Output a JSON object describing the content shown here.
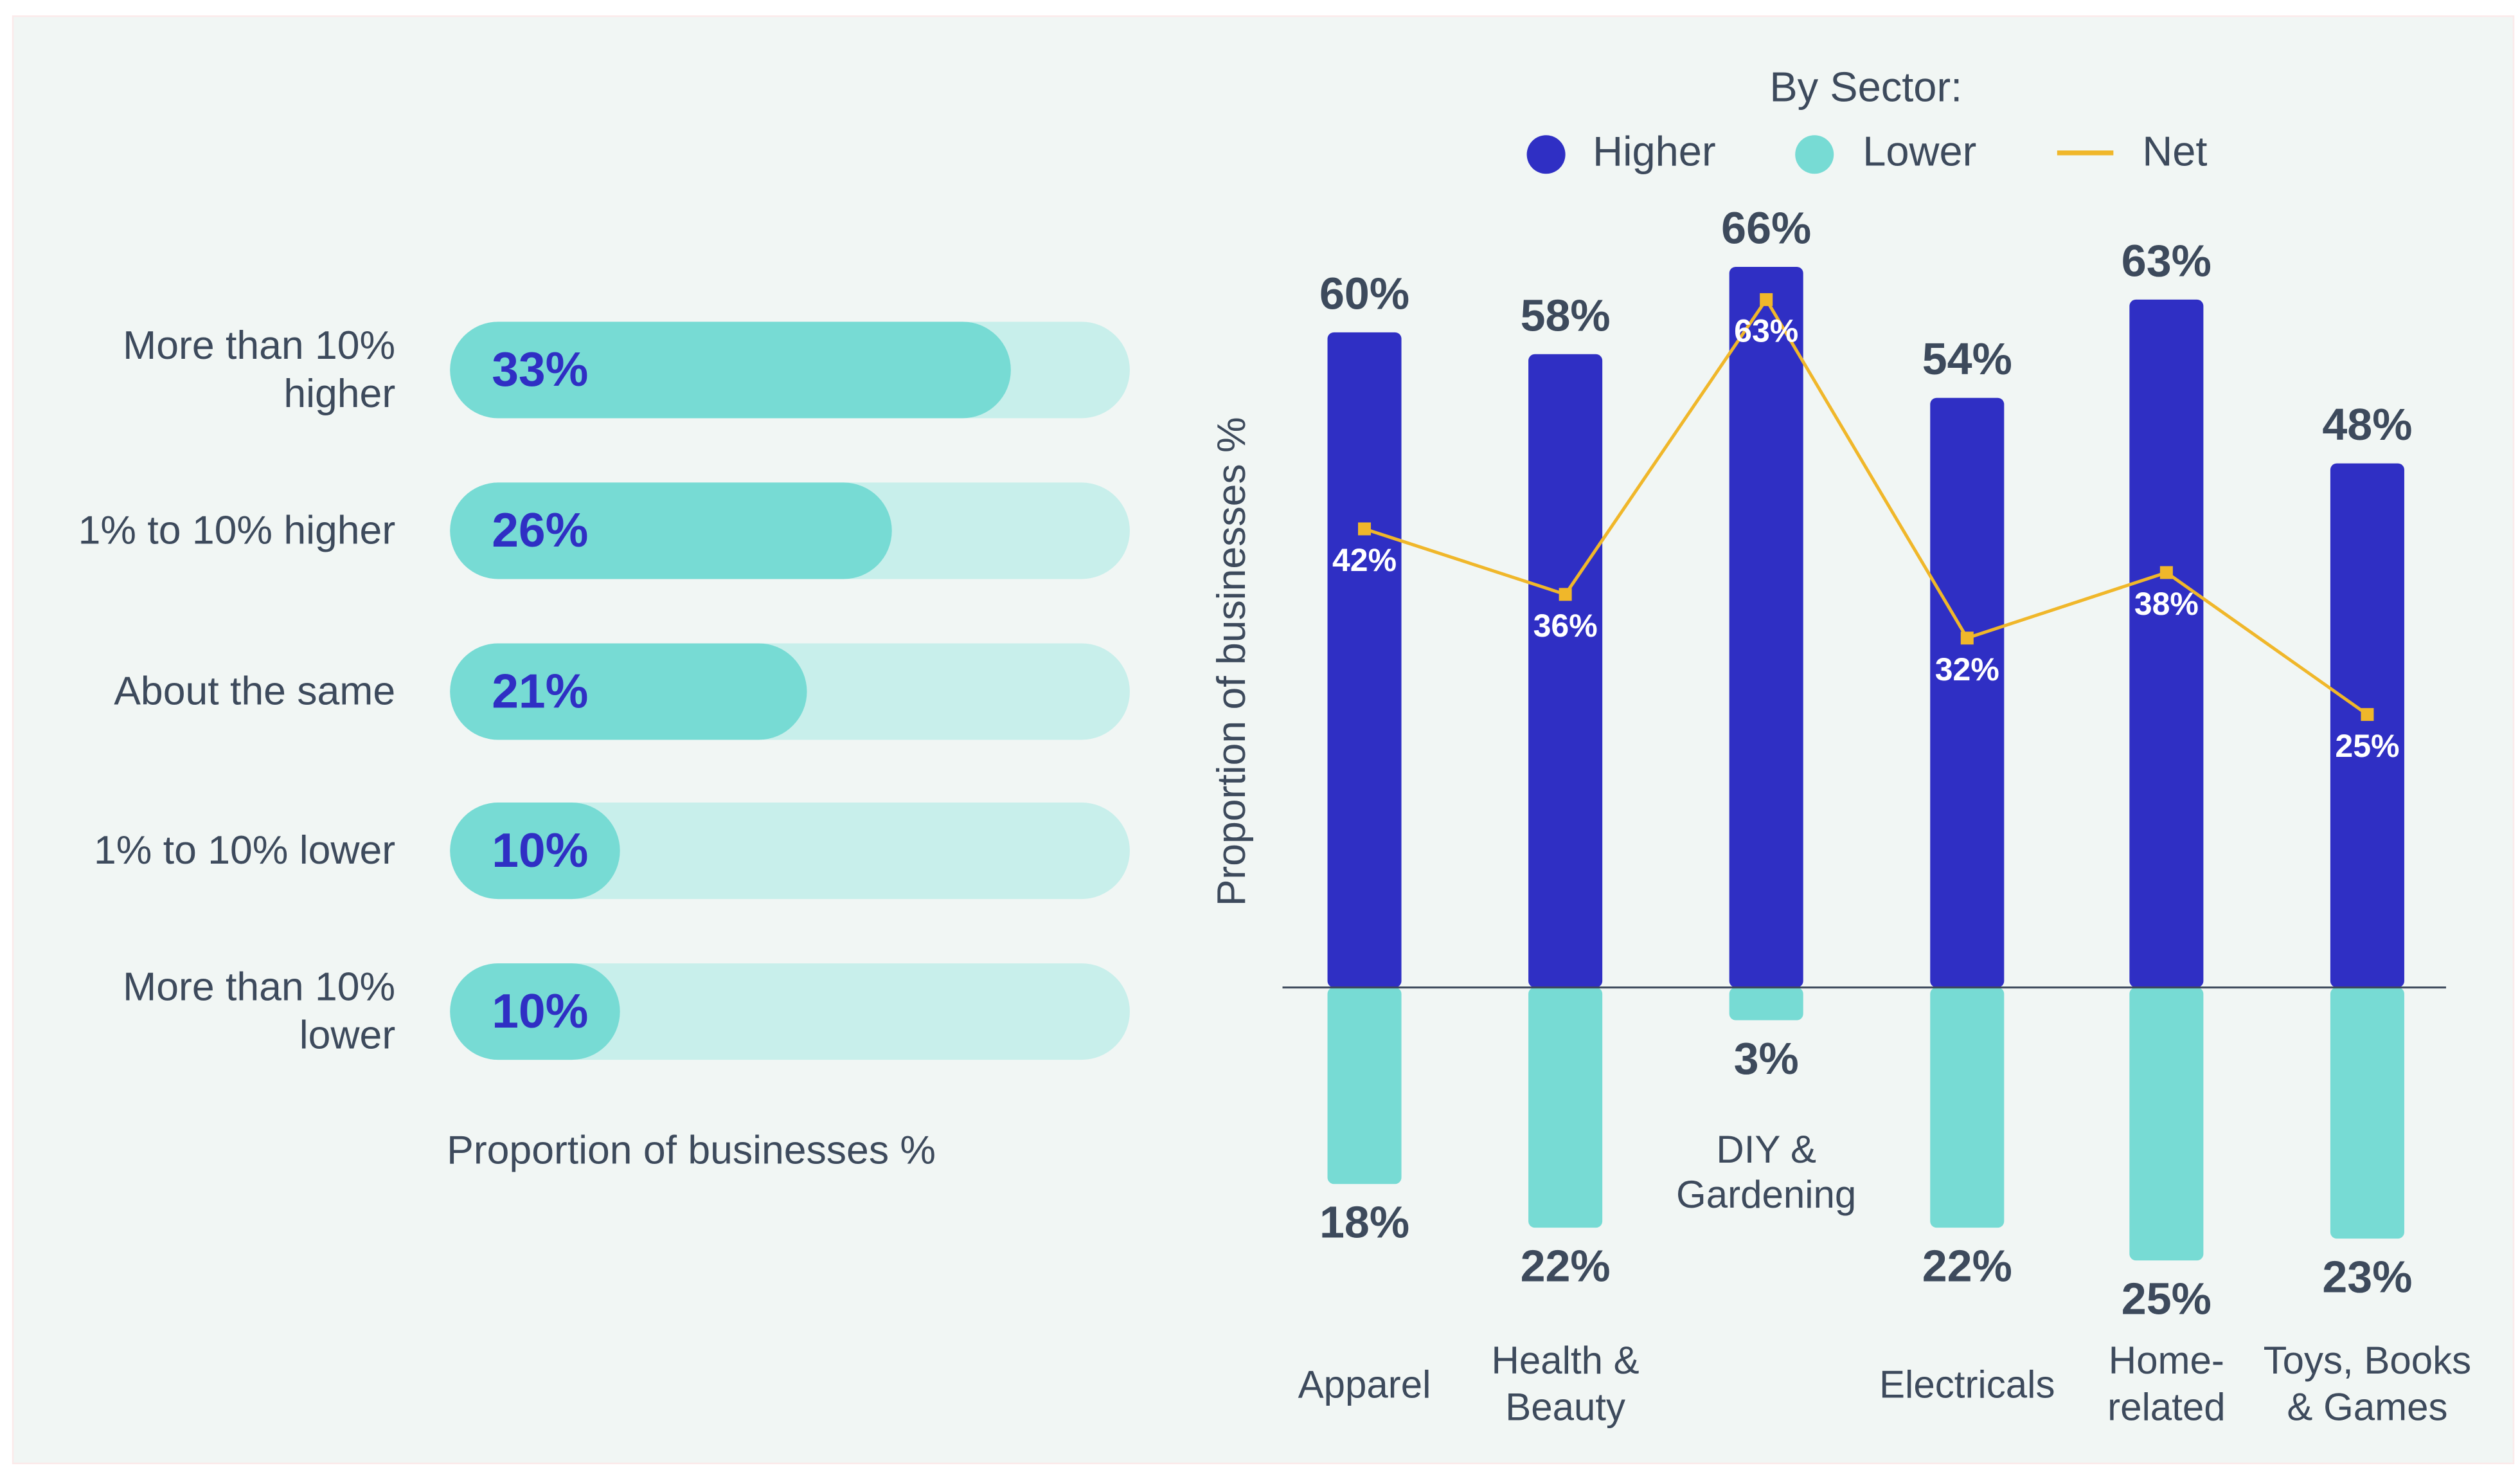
{
  "chart_data": [
    {
      "type": "hbar",
      "categories": [
        "More than 10% higher",
        "1% to 10% higher",
        "About the same",
        "1% to 10% lower",
        "More than 10% lower"
      ],
      "values": [
        33,
        26,
        21,
        10,
        10
      ],
      "value_labels": [
        "33%",
        "26%",
        "21%",
        "10%",
        "10%"
      ],
      "color": "#77dbd4",
      "xlim": [
        0,
        40
      ],
      "xlabel": "Proportion of businesses %"
    },
    {
      "type": "diverging-bar",
      "legend_title": "By Sector:",
      "categories": [
        "Apparel",
        "Health & Beauty",
        "DIY & Gardening",
        "Electricals",
        "Home-related",
        "Toys, Books & Games"
      ],
      "series": [
        {
          "name": "Higher",
          "color": "#2f2fc4",
          "values": [
            60,
            58,
            66,
            54,
            63,
            48
          ],
          "value_labels": [
            "60%",
            "58%",
            "66%",
            "54%",
            "63%",
            "48%"
          ]
        },
        {
          "name": "Lower",
          "color": "#77dbd4",
          "values": [
            -18,
            -22,
            -3,
            -22,
            -25,
            -23
          ],
          "value_labels": [
            "18%",
            "22%",
            "3%",
            "22%",
            "25%",
            "23%"
          ]
        },
        {
          "name": "Net",
          "color": "#f0b72a",
          "type": "line",
          "values": [
            42,
            36,
            63,
            32,
            38,
            25
          ],
          "value_labels": [
            "42%",
            "36%",
            "63%",
            "32%",
            "38%",
            "25%"
          ]
        }
      ],
      "ylim": [
        -30,
        70
      ],
      "ylabel": "Proportion of businesses %"
    }
  ]
}
